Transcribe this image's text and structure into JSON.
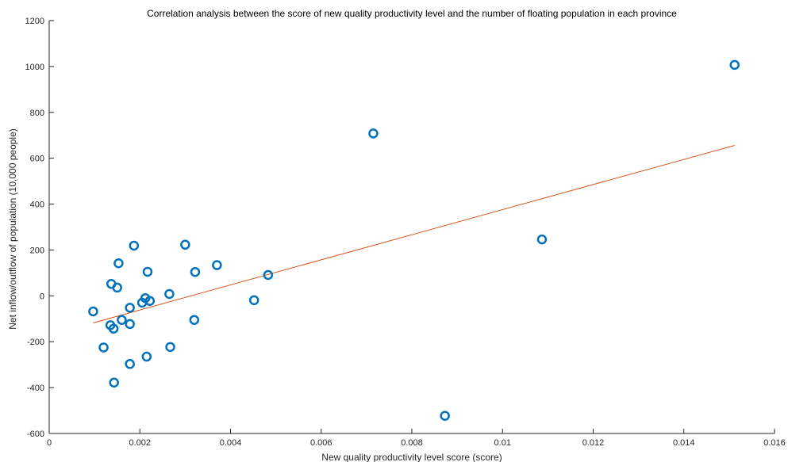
{
  "chart_data": {
    "type": "scatter",
    "title": "Correlation analysis between the score of new quality productivity level and the number of floating population in each province",
    "xlabel": "New quality productivity level score (score)",
    "ylabel": "Net inflow/outflow of population (10,000 people)",
    "xlim": [
      0,
      0.016
    ],
    "ylim": [
      -600,
      1200
    ],
    "xticks": [
      0,
      0.002,
      0.004,
      0.006,
      0.008,
      0.01,
      0.012,
      0.014,
      0.016
    ],
    "xtick_labels": [
      "0",
      "0.002",
      "0.004",
      "0.006",
      "0.008",
      "0.01",
      "0.012",
      "0.014",
      "0.016"
    ],
    "yticks": [
      -600,
      -400,
      -200,
      0,
      200,
      400,
      600,
      800,
      1000,
      1200
    ],
    "ytick_labels": [
      "-600",
      "-400",
      "-200",
      "0",
      "200",
      "400",
      "600",
      "800",
      "1000",
      "1200"
    ],
    "grid": false,
    "marker_color": "#0072bd",
    "fit_color": "#d95319",
    "points": [
      {
        "x": 0.00097,
        "y": -68
      },
      {
        "x": 0.0012,
        "y": -225
      },
      {
        "x": 0.00135,
        "y": -128
      },
      {
        "x": 0.00137,
        "y": 52
      },
      {
        "x": 0.00142,
        "y": -143
      },
      {
        "x": 0.00143,
        "y": -378
      },
      {
        "x": 0.0015,
        "y": 36
      },
      {
        "x": 0.00153,
        "y": 142
      },
      {
        "x": 0.0016,
        "y": -105
      },
      {
        "x": 0.00178,
        "y": -52
      },
      {
        "x": 0.00178,
        "y": -123
      },
      {
        "x": 0.00178,
        "y": -297
      },
      {
        "x": 0.00187,
        "y": 219
      },
      {
        "x": 0.00205,
        "y": -30
      },
      {
        "x": 0.00212,
        "y": -10
      },
      {
        "x": 0.00215,
        "y": -265
      },
      {
        "x": 0.00217,
        "y": 105
      },
      {
        "x": 0.00222,
        "y": -22
      },
      {
        "x": 0.00265,
        "y": 8
      },
      {
        "x": 0.00267,
        "y": -223
      },
      {
        "x": 0.003,
        "y": 223
      },
      {
        "x": 0.0032,
        "y": -105
      },
      {
        "x": 0.00322,
        "y": 104
      },
      {
        "x": 0.0037,
        "y": 134
      },
      {
        "x": 0.00452,
        "y": -19
      },
      {
        "x": 0.00483,
        "y": 91
      },
      {
        "x": 0.00715,
        "y": 708
      },
      {
        "x": 0.00873,
        "y": -523
      },
      {
        "x": 0.01087,
        "y": 246
      },
      {
        "x": 0.01512,
        "y": 1007
      }
    ],
    "fit_line": {
      "x": [
        0.00097,
        0.01512
      ],
      "y": [
        -118,
        656
      ]
    }
  }
}
